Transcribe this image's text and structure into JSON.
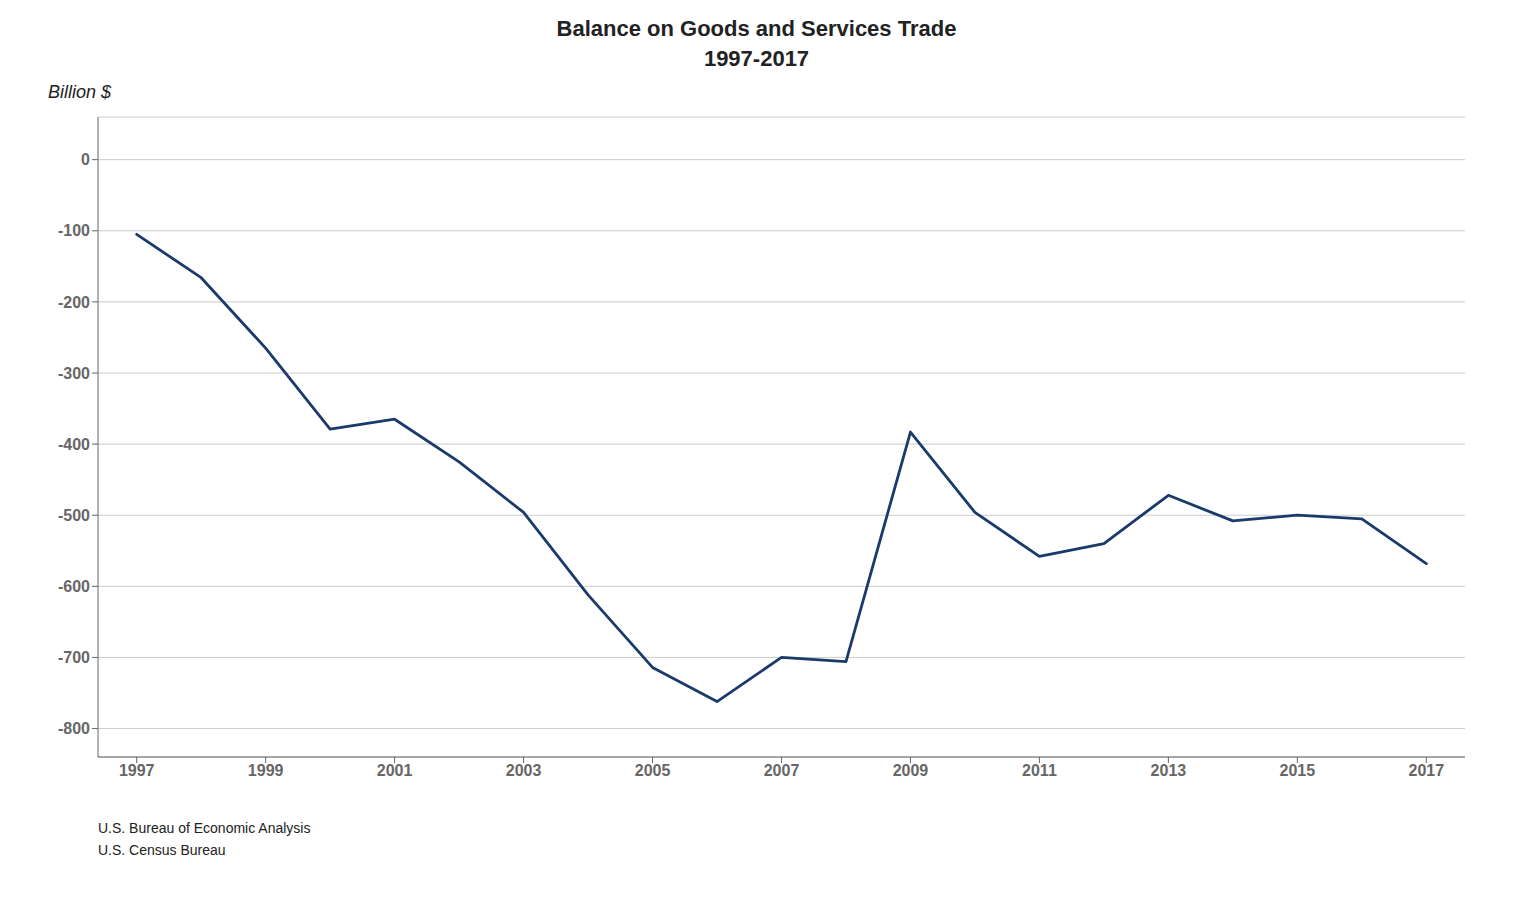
{
  "chart_data": {
    "type": "line",
    "title": "Balance on Goods and Services Trade",
    "subtitle": "1997-2017",
    "y_label": "Billion $",
    "annotations": [
      "U.S. Bureau of Economic Analysis",
      "U.S. Census Bureau"
    ],
    "x": [
      1997,
      1998,
      1999,
      2000,
      2001,
      2002,
      2003,
      2004,
      2005,
      2006,
      2007,
      2008,
      2009,
      2010,
      2011,
      2012,
      2013,
      2014,
      2015,
      2016,
      2017
    ],
    "values": [
      -105,
      -166,
      -265,
      -379,
      -365,
      -425,
      -496,
      -612,
      -714,
      -762,
      -700,
      -706,
      -383,
      -496,
      -558,
      -540,
      -472,
      -508,
      -500,
      -505,
      -568
    ],
    "color": "#1a3a6b",
    "xlim": [
      1996.4,
      2017.6
    ],
    "ylim": [
      -840,
      60
    ],
    "xticks": [
      1997,
      1999,
      2001,
      2003,
      2005,
      2007,
      2009,
      2011,
      2013,
      2015,
      2017
    ],
    "yticks": [
      0,
      -100,
      -200,
      -300,
      -400,
      -500,
      -600,
      -700,
      -800
    ],
    "grid": true
  }
}
